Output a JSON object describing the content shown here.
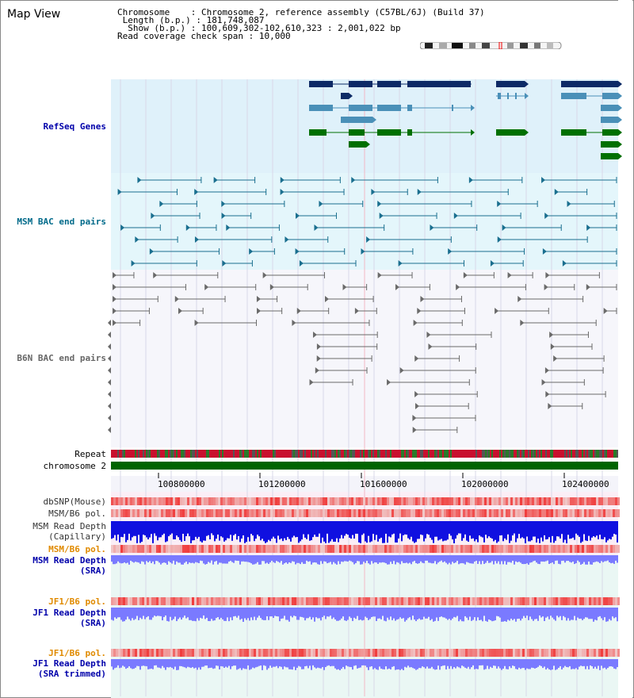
{
  "title": "Map View",
  "info": {
    "chromosome_label": "Chromosome",
    "chromosome_value": "Chromosome 2, reference assembly (C57BL/6J) (Build 37)",
    "length_label": "Length (b.p.)",
    "length_value": "181,748,087",
    "show_label": "Show (b.p.)",
    "show_value": "100,609,302-102,610,323 : 2,001,022 bp",
    "coverage_label": "Read coverage check span",
    "coverage_value": "10,000"
  },
  "tracks": {
    "refseq": "RefSeq Genes",
    "msm_bac": "MSM BAC end pairs",
    "b6n_bac": "B6N BAC end pairs",
    "repeat": "Repeat",
    "chromosome": "chromosome 2",
    "dbsnp": "dbSNP(Mouse)",
    "msm_b6_pol_1": "MSM/B6 pol.",
    "msm_depth_cap_1": "MSM Read Depth",
    "msm_depth_cap_2": "(Capillary)",
    "msm_b6_pol_2": "MSM/B6 pol.",
    "msm_depth_sra_1": "MSM Read Depth",
    "msm_depth_sra_2": "(SRA)",
    "jf1_pol_1": "JF1/B6 pol.",
    "jf1_depth_1": "JF1 Read Depth",
    "jf1_depth_2": "(SRA)",
    "jf1_pol_2": "JF1/B6 pol.",
    "jf1_trim_1": "JF1 Read Depth",
    "jf1_trim_2": "(SRA trimmed)"
  },
  "axis_ticks": [
    "100800000",
    "101200000",
    "101600000",
    "102000000",
    "102400000"
  ],
  "colors": {
    "refseq_bg": "#dff1fa",
    "msm_bg": "#e4f6fb",
    "b6n_bg": "#f6f6fb",
    "gene_navy": "#0d2a66",
    "gene_blue": "#4a90b8",
    "gene_green": "#007000",
    "bac_teal": "#1a6f8f",
    "bac_gray": "#6a6a6a",
    "chrom_green": "#006400",
    "depth_blue": "#1010e0",
    "depth_light": "#7a7aff",
    "pol_red": "#e83030"
  }
}
